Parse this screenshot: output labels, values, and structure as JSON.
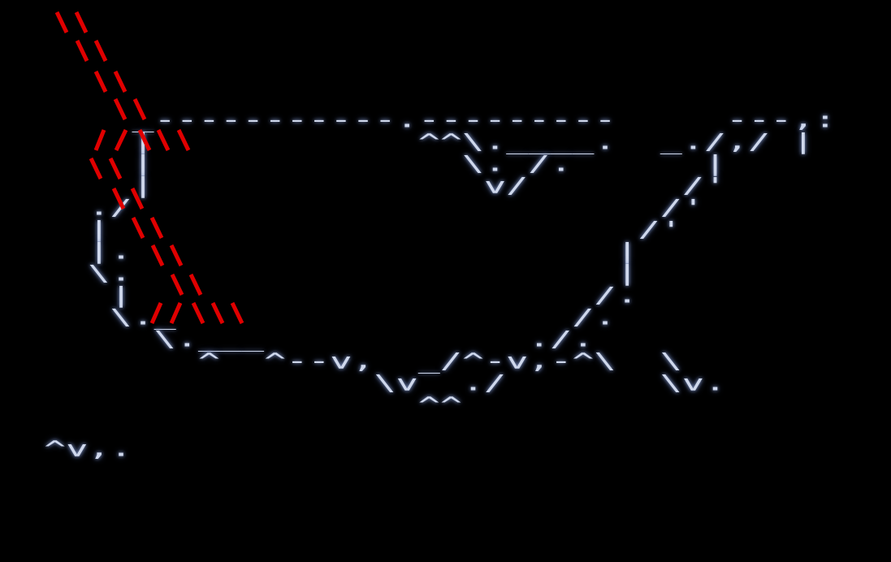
{
  "map_lines": [
    "",
    "",
    "",
    "",
    "",
    "      _-----------.---------     ---,:",
    "      |            ^^\\.____.  _./,/ |",
    "      |              \\. /.      |",
    "      |               v/       /'",
    "    ./                        /'",
    "    |                        /'",
    "    |.                      |",
    "    \\.                      |",
    "     |                     /.",
    "     \\._                  /.",
    "       \\.___            ./.",
    "         ^  ^--v,  _/^-v,-^\\  \\",
    "                 \\v  ./       \\v.",
    "                   ^^",
    "",
    "  ^v,."
  ],
  "colors": {
    "background": "#000000",
    "text": "#cfd8ec",
    "glow": "#8fa3d6",
    "overlay_strokes": "#e00000"
  }
}
